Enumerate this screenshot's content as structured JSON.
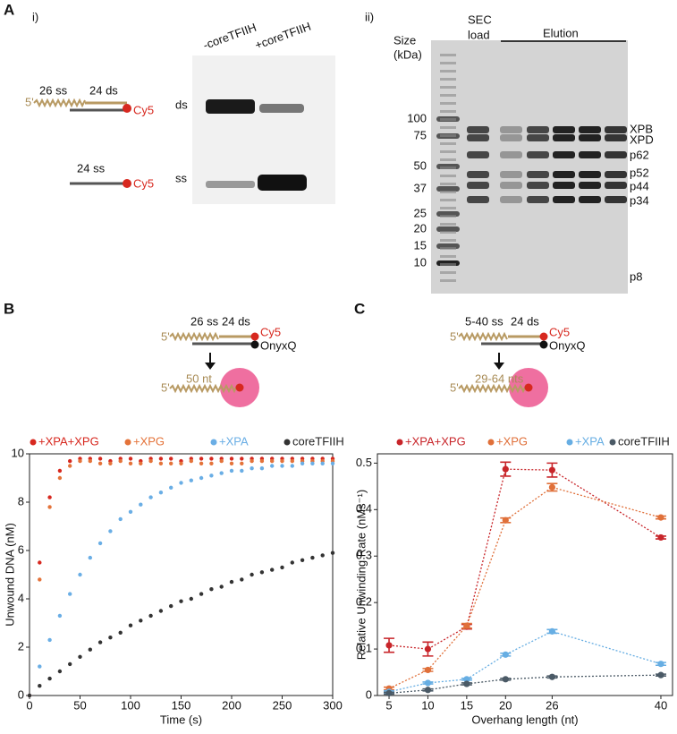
{
  "panel_a": {
    "label": "A",
    "sub_i": "i)",
    "sub_ii": "ii)",
    "diagram": {
      "five_prime": "5'",
      "ss_top": "26 ss",
      "ds_top": "24 ds",
      "dye_top": "Cy5",
      "ss_bottom": "24 ss",
      "dye_bottom": "Cy5"
    },
    "gel_i": {
      "lanes": [
        "-coreTFIIH",
        "+coreTFIIH"
      ],
      "bands": [
        "ds",
        "ss"
      ]
    },
    "gel_ii": {
      "size_label": [
        "Size",
        "(kDa)"
      ],
      "load_label": [
        "SEC",
        "load"
      ],
      "elution_label": "Elution",
      "markers": [
        "100",
        "75",
        "50",
        "37",
        "25",
        "20",
        "15",
        "10"
      ],
      "proteins": [
        "XPB",
        "XPD",
        "p62",
        "p52",
        "p44",
        "p34",
        "p8"
      ]
    }
  },
  "panel_b": {
    "label": "B",
    "diagram": {
      "five_prime_top": "5'",
      "ss": "26 ss",
      "ds": "24 ds",
      "dye": "Cy5",
      "quencher": "OnyxQ",
      "five_prime_bottom": "5'",
      "product": "50 nt"
    }
  },
  "panel_c": {
    "label": "C",
    "diagram": {
      "five_prime_top": "5'",
      "ss": "5-40 ss",
      "ds": "24 ds",
      "dye": "Cy5",
      "quencher": "OnyxQ",
      "five_prime_bottom": "5'",
      "product": "29-64 nts"
    }
  },
  "chart_data": [
    {
      "type": "scatter",
      "x_label": "Time (s)",
      "y_label": "Unwound DNA (nM)",
      "x": [
        0,
        10,
        20,
        30,
        40,
        50,
        60,
        70,
        80,
        90,
        100,
        110,
        120,
        130,
        140,
        150,
        160,
        170,
        180,
        190,
        200,
        210,
        220,
        230,
        240,
        250,
        260,
        270,
        280,
        290,
        300
      ],
      "xlim": [
        0,
        300
      ],
      "xticks": [
        0,
        50,
        100,
        150,
        200,
        250,
        300
      ],
      "ylim": [
        0,
        10
      ],
      "yticks": [
        0,
        2,
        4,
        6,
        8,
        10
      ],
      "series": [
        {
          "name": "+XPA+XPG",
          "color": "#d7281f",
          "values": [
            0,
            5.5,
            8.2,
            9.3,
            9.7,
            9.8,
            9.8,
            9.8,
            9.7,
            9.8,
            9.8,
            9.7,
            9.8,
            9.8,
            9.8,
            9.7,
            9.8,
            9.8,
            9.8,
            9.8,
            9.8,
            9.8,
            9.8,
            9.8,
            9.8,
            9.8,
            9.8,
            9.8,
            9.8,
            9.8,
            9.8
          ]
        },
        {
          "name": "+XPG",
          "color": "#e4733a",
          "values": [
            0,
            4.8,
            7.8,
            9.0,
            9.5,
            9.7,
            9.7,
            9.6,
            9.6,
            9.7,
            9.6,
            9.6,
            9.7,
            9.6,
            9.6,
            9.6,
            9.7,
            9.6,
            9.6,
            9.7,
            9.6,
            9.6,
            9.7,
            9.7,
            9.7,
            9.7,
            9.7,
            9.7,
            9.7,
            9.7,
            9.7
          ]
        },
        {
          "name": "+XPA",
          "color": "#6aaee5",
          "values": [
            0,
            1.2,
            2.3,
            3.3,
            4.2,
            5.0,
            5.7,
            6.3,
            6.8,
            7.3,
            7.6,
            7.9,
            8.2,
            8.4,
            8.6,
            8.8,
            8.9,
            9.0,
            9.1,
            9.2,
            9.3,
            9.3,
            9.4,
            9.4,
            9.5,
            9.5,
            9.5,
            9.6,
            9.6,
            9.6,
            9.6
          ]
        },
        {
          "name": "coreTFIIH",
          "color": "#333333",
          "values": [
            0,
            0.4,
            0.7,
            1.0,
            1.3,
            1.6,
            1.9,
            2.2,
            2.4,
            2.6,
            2.9,
            3.1,
            3.3,
            3.5,
            3.7,
            3.9,
            4.0,
            4.2,
            4.4,
            4.5,
            4.7,
            4.8,
            5.0,
            5.1,
            5.2,
            5.3,
            5.5,
            5.6,
            5.7,
            5.8,
            5.9
          ]
        }
      ]
    },
    {
      "type": "line",
      "x_label": "Overhang length (nt)",
      "y_label": "Relative Unwinding Rate (nMs⁻¹)",
      "x": [
        5,
        10,
        15,
        20,
        26,
        40
      ],
      "xlim": [
        3.5,
        41.5
      ],
      "xticks": [
        5,
        10,
        15,
        20,
        26,
        40
      ],
      "ylim": [
        0,
        0.52
      ],
      "yticks": [
        0,
        0.1,
        0.2,
        0.3,
        0.4,
        0.5
      ],
      "series": [
        {
          "name": "+XPA+XPG",
          "color": "#c8252a",
          "values": [
            0.108,
            0.1,
            0.148,
            0.487,
            0.485,
            0.34
          ],
          "errors": [
            0.015,
            0.015,
            0.005,
            0.015,
            0.015,
            0.003
          ]
        },
        {
          "name": "+XPG",
          "color": "#e0703a",
          "values": [
            0.015,
            0.055,
            0.15,
            0.377,
            0.448,
            0.383
          ],
          "errors": [
            0.003,
            0.003,
            0.005,
            0.005,
            0.008,
            0.003
          ]
        },
        {
          "name": "+XPA",
          "color": "#67aee3",
          "values": [
            0.008,
            0.027,
            0.035,
            0.088,
            0.138,
            0.068
          ],
          "errors": [
            0.002,
            0.002,
            0.002,
            0.003,
            0.004,
            0.003
          ]
        },
        {
          "name": "coreTFIIH",
          "color": "#4b5a66",
          "values": [
            0.005,
            0.012,
            0.025,
            0.035,
            0.04,
            0.044
          ],
          "errors": [
            0.002,
            0.002,
            0.002,
            0.002,
            0.002,
            0.002
          ]
        }
      ]
    }
  ]
}
